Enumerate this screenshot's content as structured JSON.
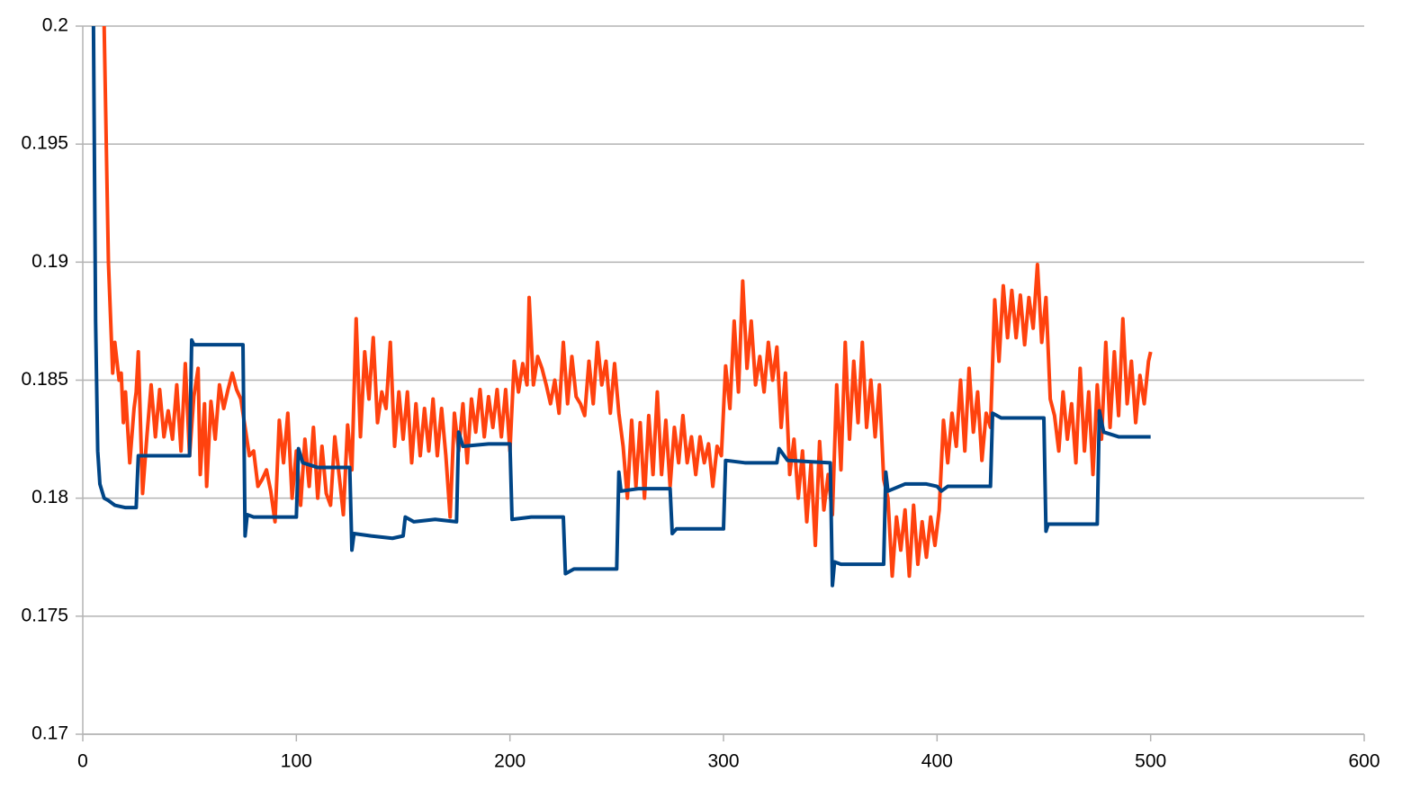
{
  "chart_data": {
    "type": "line",
    "xlim": [
      0,
      600
    ],
    "xticks": [
      0,
      100,
      200,
      300,
      400,
      500,
      600
    ],
    "ylim": [
      0.17,
      0.2
    ],
    "yticks": [
      0.17,
      0.175,
      0.18,
      0.185,
      0.19,
      0.195,
      0.2
    ],
    "grid": true,
    "series": [
      {
        "color": "#004586",
        "x": [
          5,
          6,
          7,
          8,
          10,
          12,
          15,
          20,
          25,
          26,
          30,
          40,
          50,
          51,
          52,
          60,
          75,
          76,
          77,
          80,
          90,
          100,
          101,
          103,
          110,
          125,
          126,
          127,
          135,
          145,
          150,
          151,
          155,
          165,
          175,
          176,
          178,
          190,
          200,
          201,
          210,
          225,
          226,
          230,
          250,
          251,
          252,
          260,
          275,
          276,
          278,
          290,
          300,
          301,
          310,
          325,
          326,
          330,
          350,
          351,
          352,
          355,
          375,
          376,
          377,
          385,
          395,
          400,
          402,
          405,
          425,
          426,
          430,
          450,
          451,
          452,
          475,
          476,
          478,
          485,
          500
        ],
        "values": [
          0.2,
          0.1875,
          0.182,
          0.1806,
          0.18,
          0.1799,
          0.1797,
          0.1796,
          0.1796,
          0.1818,
          0.1818,
          0.1818,
          0.1818,
          0.1867,
          0.1865,
          0.1865,
          0.1865,
          0.1784,
          0.1793,
          0.1792,
          0.1792,
          0.1792,
          0.1821,
          0.1815,
          0.1813,
          0.1813,
          0.1778,
          0.1785,
          0.1784,
          0.1783,
          0.1784,
          0.1792,
          0.179,
          0.1791,
          0.179,
          0.1828,
          0.1822,
          0.1823,
          0.1823,
          0.1791,
          0.1792,
          0.1792,
          0.1768,
          0.177,
          0.177,
          0.1811,
          0.1803,
          0.1804,
          0.1804,
          0.1785,
          0.1787,
          0.1787,
          0.1787,
          0.1816,
          0.1815,
          0.1815,
          0.1821,
          0.1816,
          0.1815,
          0.1763,
          0.1773,
          0.1772,
          0.1772,
          0.1811,
          0.1803,
          0.1806,
          0.1806,
          0.1805,
          0.1803,
          0.1805,
          0.1805,
          0.1836,
          0.1834,
          0.1834,
          0.1786,
          0.1789,
          0.1789,
          0.1837,
          0.1828,
          0.1826,
          0.1826
        ]
      },
      {
        "color": "#ff420e",
        "x": [
          10,
          12,
          14,
          15,
          17,
          18,
          19,
          20,
          22,
          24,
          25,
          26,
          28,
          30,
          32,
          34,
          36,
          38,
          40,
          42,
          44,
          46,
          48,
          50,
          52,
          54,
          55,
          57,
          58,
          60,
          62,
          64,
          66,
          68,
          70,
          72,
          74,
          76,
          78,
          80,
          82,
          84,
          86,
          88,
          90,
          92,
          94,
          96,
          98,
          100,
          102,
          104,
          106,
          108,
          110,
          112,
          114,
          116,
          118,
          120,
          122,
          124,
          126,
          128,
          130,
          132,
          134,
          136,
          138,
          140,
          142,
          144,
          146,
          148,
          150,
          152,
          154,
          156,
          158,
          160,
          162,
          164,
          166,
          168,
          170,
          172,
          174,
          176,
          178,
          180,
          182,
          184,
          186,
          188,
          190,
          192,
          194,
          196,
          198,
          200,
          202,
          204,
          206,
          208,
          209,
          211,
          213,
          215,
          217,
          219,
          221,
          223,
          225,
          227,
          229,
          231,
          233,
          235,
          237,
          239,
          241,
          243,
          245,
          247,
          249,
          251,
          253,
          255,
          257,
          259,
          261,
          263,
          265,
          267,
          269,
          271,
          273,
          275,
          277,
          279,
          281,
          283,
          285,
          287,
          289,
          291,
          293,
          295,
          297,
          299,
          301,
          303,
          305,
          307,
          309,
          311,
          313,
          315,
          317,
          319,
          321,
          323,
          325,
          327,
          329,
          331,
          333,
          335,
          337,
          339,
          341,
          343,
          345,
          347,
          349,
          351,
          353,
          355,
          357,
          359,
          361,
          363,
          365,
          367,
          369,
          371,
          373,
          375,
          377,
          379,
          381,
          383,
          385,
          387,
          389,
          391,
          393,
          395,
          397,
          399,
          401,
          403,
          405,
          407,
          409,
          411,
          413,
          415,
          417,
          419,
          421,
          423,
          425,
          427,
          429,
          431,
          433,
          435,
          437,
          439,
          441,
          443,
          445,
          447,
          449,
          451,
          453,
          455,
          457,
          459,
          461,
          463,
          465,
          467,
          469,
          471,
          473,
          475,
          477,
          479,
          481,
          483,
          485,
          487,
          489,
          491,
          493,
          495,
          497,
          499,
          500
        ],
        "values": [
          0.2,
          0.19,
          0.1853,
          0.1866,
          0.185,
          0.1853,
          0.1832,
          0.1845,
          0.1815,
          0.1838,
          0.1845,
          0.1862,
          0.1802,
          0.1826,
          0.1848,
          0.1826,
          0.1846,
          0.1826,
          0.1837,
          0.1825,
          0.1848,
          0.182,
          0.1857,
          0.1818,
          0.1843,
          0.1855,
          0.181,
          0.184,
          0.1805,
          0.1841,
          0.1825,
          0.1848,
          0.1838,
          0.1846,
          0.1853,
          0.1846,
          0.1842,
          0.183,
          0.1818,
          0.182,
          0.1805,
          0.1808,
          0.1812,
          0.1803,
          0.179,
          0.1833,
          0.1815,
          0.1836,
          0.18,
          0.182,
          0.1797,
          0.1825,
          0.1805,
          0.183,
          0.18,
          0.1822,
          0.1802,
          0.1797,
          0.1826,
          0.181,
          0.1793,
          0.1831,
          0.1812,
          0.1876,
          0.1826,
          0.1862,
          0.1842,
          0.1868,
          0.1832,
          0.1845,
          0.1838,
          0.1866,
          0.1822,
          0.1845,
          0.1825,
          0.1845,
          0.1815,
          0.184,
          0.1818,
          0.1838,
          0.182,
          0.1842,
          0.1818,
          0.1838,
          0.1818,
          0.1792,
          0.1836,
          0.182,
          0.184,
          0.1815,
          0.1842,
          0.1828,
          0.1846,
          0.1826,
          0.1843,
          0.183,
          0.1846,
          0.1826,
          0.1846,
          0.182,
          0.1858,
          0.1845,
          0.1857,
          0.1848,
          0.1885,
          0.1848,
          0.186,
          0.1855,
          0.1848,
          0.184,
          0.185,
          0.1836,
          0.1866,
          0.184,
          0.186,
          0.1843,
          0.184,
          0.1835,
          0.1858,
          0.184,
          0.1866,
          0.1848,
          0.1858,
          0.1836,
          0.1857,
          0.1836,
          0.1822,
          0.18,
          0.1833,
          0.1805,
          0.1832,
          0.18,
          0.1835,
          0.181,
          0.1845,
          0.181,
          0.1833,
          0.1805,
          0.183,
          0.1815,
          0.1835,
          0.1815,
          0.1826,
          0.181,
          0.1826,
          0.1815,
          0.1823,
          0.1805,
          0.1822,
          0.1818,
          0.1856,
          0.1838,
          0.1875,
          0.1845,
          0.1892,
          0.1855,
          0.1875,
          0.1848,
          0.186,
          0.1845,
          0.1866,
          0.185,
          0.1864,
          0.183,
          0.1853,
          0.181,
          0.1825,
          0.18,
          0.182,
          0.179,
          0.1815,
          0.178,
          0.1824,
          0.1795,
          0.181,
          0.1793,
          0.1848,
          0.1812,
          0.1866,
          0.1825,
          0.1858,
          0.1832,
          0.1866,
          0.183,
          0.185,
          0.1826,
          0.1848,
          0.1808,
          0.18,
          0.1767,
          0.1792,
          0.1778,
          0.1795,
          0.1767,
          0.1797,
          0.1772,
          0.179,
          0.1775,
          0.1792,
          0.178,
          0.1795,
          0.1833,
          0.1815,
          0.1836,
          0.1822,
          0.185,
          0.182,
          0.1855,
          0.1828,
          0.1845,
          0.1816,
          0.1836,
          0.183,
          0.1884,
          0.1858,
          0.189,
          0.1868,
          0.1888,
          0.1868,
          0.1886,
          0.1865,
          0.1885,
          0.1872,
          0.1899,
          0.1866,
          0.1885,
          0.1842,
          0.1835,
          0.182,
          0.1845,
          0.1825,
          0.184,
          0.1815,
          0.1855,
          0.182,
          0.1845,
          0.181,
          0.1848,
          0.1825,
          0.1866,
          0.183,
          0.1862,
          0.1835,
          0.1876,
          0.184,
          0.1858,
          0.1832,
          0.1852,
          0.184,
          0.1858,
          0.1862
        ]
      }
    ]
  }
}
